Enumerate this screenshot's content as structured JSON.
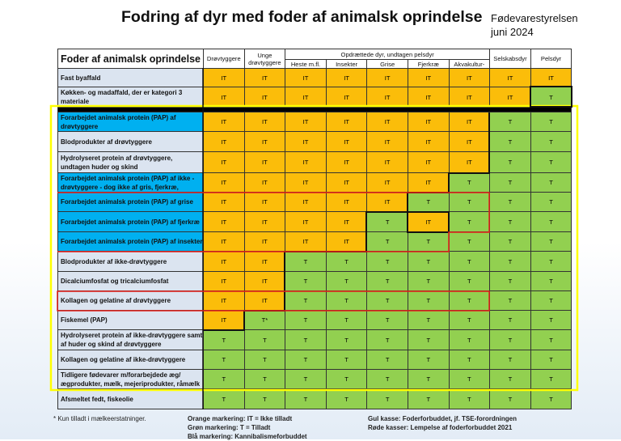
{
  "title": "Fodring af dyr med foder af animalsk oprindelse",
  "org": {
    "name": "Fødevarestyrelsen",
    "date": "juni 2024"
  },
  "header": {
    "main": "Foder af animalsk oprindelse",
    "drovtyggere": "Drøvtyggere",
    "unge": "Unge drøvtyggere",
    "group": "Opdrættede dyr, undtagen pelsdyr",
    "sub": [
      "Heste m.fl.",
      "Insekter",
      "Grise",
      "Fjerkræ",
      "Akvakultur-"
    ],
    "selskabsdyr": "Selskabsdyr",
    "pelsdyr": "Pelsdyr"
  },
  "colors": {
    "IT": "#fbbd0a",
    "T": "#92d050",
    "blue": "#00b0f0",
    "yellow_box": "#ffff00",
    "red_box": "#ff0000"
  },
  "rows": [
    {
      "label": "Fast byaffald",
      "blue": false,
      "cells": [
        "IT",
        "IT",
        "IT",
        "IT",
        "IT",
        "IT",
        "IT",
        "IT",
        "IT"
      ]
    },
    {
      "label": "Køkken- og madaffald, der er kategori 3 materiale",
      "blue": false,
      "cells": [
        "IT",
        "IT",
        "IT",
        "IT",
        "IT",
        "IT",
        "IT",
        "IT",
        "T"
      ]
    },
    {
      "label": "Forarbejdet animalsk protein (PAP) af drøvtyggere",
      "blue": true,
      "cells": [
        "IT",
        "IT",
        "IT",
        "IT",
        "IT",
        "IT",
        "IT",
        "T",
        "T"
      ]
    },
    {
      "label": "Blodprodukter af drøvtyggere",
      "blue": false,
      "cells": [
        "IT",
        "IT",
        "IT",
        "IT",
        "IT",
        "IT",
        "IT",
        "T",
        "T"
      ]
    },
    {
      "label": "Hydrolyseret protein af drøvtyggere, undtagen huder og skind",
      "blue": false,
      "cells": [
        "IT",
        "IT",
        "IT",
        "IT",
        "IT",
        "IT",
        "IT",
        "T",
        "T"
      ]
    },
    {
      "label": "Forarbejdet animalsk protein (PAP) af ikke - drøvtyggere - dog ikke af gris, fjerkræ,",
      "blue": true,
      "cells": [
        "IT",
        "IT",
        "IT",
        "IT",
        "IT",
        "IT",
        "T",
        "T",
        "T"
      ]
    },
    {
      "label": "Forarbejdet animalsk protein (PAP) af grise",
      "blue": true,
      "cells": [
        "IT",
        "IT",
        "IT",
        "IT",
        "IT",
        "T",
        "T",
        "T",
        "T"
      ]
    },
    {
      "label": "Forarbejdet animalsk protein (PAP) af fjerkræ",
      "blue": true,
      "cells": [
        "IT",
        "IT",
        "IT",
        "IT",
        "T",
        "IT",
        "T",
        "T",
        "T"
      ]
    },
    {
      "label": "Forarbejdet animalsk protein (PAP) af insekter",
      "blue": true,
      "cells": [
        "IT",
        "IT",
        "IT",
        "IT",
        "T",
        "T",
        "T",
        "T",
        "T"
      ]
    },
    {
      "label": "Blodprodukter af ikke-drøvtyggere",
      "blue": false,
      "cells": [
        "IT",
        "IT",
        "T",
        "T",
        "T",
        "T",
        "T",
        "T",
        "T"
      ]
    },
    {
      "label": "Dicalciumfosfat og tricalciumfosfat",
      "blue": false,
      "cells": [
        "IT",
        "IT",
        "T",
        "T",
        "T",
        "T",
        "T",
        "T",
        "T"
      ]
    },
    {
      "label": "Kollagen og gelatine af drøvtyggere",
      "blue": false,
      "cells": [
        "IT",
        "IT",
        "T",
        "T",
        "T",
        "T",
        "T",
        "T",
        "T"
      ]
    },
    {
      "label": "Fiskemel (PAP)",
      "blue": false,
      "cells": [
        "IT",
        "T*",
        "T",
        "T",
        "T",
        "T",
        "T",
        "T",
        "T"
      ]
    },
    {
      "label": "Hydrolyseret protein af ikke-drøvtyggere samt af huder og skind af drøvtyggere",
      "blue": false,
      "cells": [
        "T",
        "T",
        "T",
        "T",
        "T",
        "T",
        "T",
        "T",
        "T"
      ]
    },
    {
      "label": "Kollagen og gelatine af ikke-drøvtyggere",
      "blue": false,
      "cells": [
        "T",
        "T",
        "T",
        "T",
        "T",
        "T",
        "T",
        "T",
        "T"
      ]
    },
    {
      "label": "Tidligere fødevarer m/forarbejdede æg/ ægprodukter, mælk, mejeriprodukter, råmælk",
      "blue": false,
      "cells": [
        "T",
        "T",
        "T",
        "T",
        "T",
        "T",
        "T",
        "T",
        "T"
      ]
    },
    {
      "label": "Afsmeltet fedt, fiskeolie",
      "blue": false,
      "cells": [
        "T",
        "T",
        "T",
        "T",
        "T",
        "T",
        "T",
        "T",
        "T"
      ]
    }
  ],
  "footer": {
    "note": "* Kun tilladt i mælkeerstatninger.",
    "legend_left": [
      "Orange markering: IT = Ikke tilladt",
      "Grøn markering: T = Tilladt",
      "Blå markering: Kannibalismeforbuddet"
    ],
    "legend_right": [
      "Gul kasse: Foderforbuddet, jf. TSE-forordningen",
      "Røde kasser: Lempelse af foderforbuddet 2021"
    ]
  }
}
